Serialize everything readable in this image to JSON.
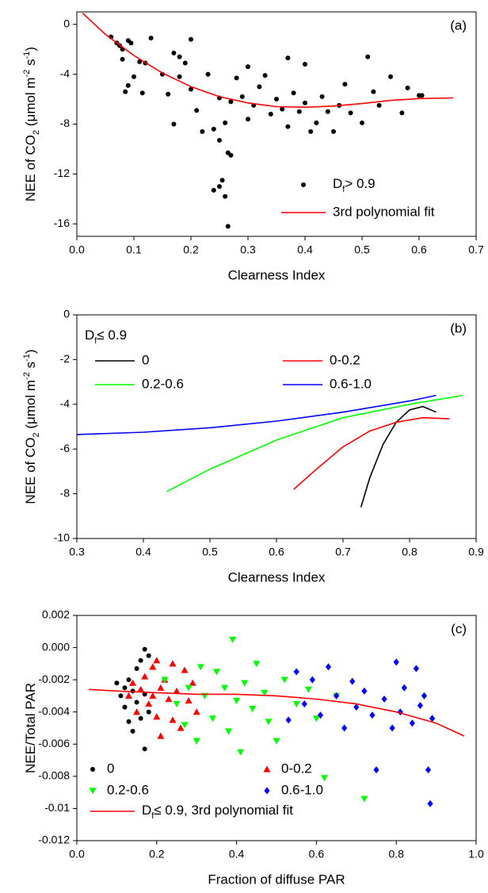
{
  "chart_data": [
    {
      "type": "scatter",
      "label": "(a)",
      "xlabel": "Clearness Index",
      "ylabel": [
        {
          "text": "NEE of CO"
        },
        {
          "text": "2",
          "style": "sub"
        },
        {
          "text": " (μmol m"
        },
        {
          "text": "-2",
          "style": "sup"
        },
        {
          "text": " s"
        },
        {
          "text": "-1",
          "style": "sup"
        },
        {
          "text": ")"
        }
      ],
      "xlim": [
        0,
        0.7
      ],
      "ylim": [
        -17,
        1
      ],
      "xticks": [
        {
          "value": 0,
          "label": "0.0"
        },
        0.1,
        0.2,
        0.3,
        0.4,
        0.5,
        0.6,
        0.7
      ],
      "yticks": [
        0,
        -4,
        -8,
        -12,
        -16
      ],
      "legend": "lower right",
      "series": [
        {
          "name": [
            {
              "text": "D"
            },
            {
              "text": "f",
              "style": "sub"
            },
            {
              "text": "> 0.9"
            }
          ],
          "type": "scatter",
          "marker": "circle",
          "color": "#000000",
          "x": [
            0.06,
            0.07,
            0.075,
            0.08,
            0.08,
            0.085,
            0.09,
            0.09,
            0.095,
            0.1,
            0.11,
            0.115,
            0.12,
            0.13,
            0.15,
            0.16,
            0.17,
            0.17,
            0.18,
            0.18,
            0.19,
            0.2,
            0.2,
            0.21,
            0.22,
            0.23,
            0.24,
            0.24,
            0.25,
            0.25,
            0.25,
            0.255,
            0.26,
            0.26,
            0.265,
            0.265,
            0.27,
            0.27,
            0.28,
            0.29,
            0.3,
            0.3,
            0.31,
            0.32,
            0.33,
            0.34,
            0.35,
            0.36,
            0.37,
            0.37,
            0.38,
            0.39,
            0.4,
            0.4,
            0.41,
            0.42,
            0.43,
            0.44,
            0.45,
            0.46,
            0.47,
            0.48,
            0.5,
            0.51,
            0.52,
            0.53,
            0.55,
            0.57,
            0.58,
            0.6,
            0.605
          ],
          "values": [
            -1.0,
            -1.5,
            -1.7,
            -2.0,
            -2.8,
            -5.4,
            -4.9,
            -1.3,
            -1.5,
            -4.2,
            -3.0,
            -5.5,
            -3.1,
            -1.1,
            -4.0,
            -5.6,
            -8.0,
            -2.3,
            -2.6,
            -4.2,
            -3.1,
            -1.2,
            -5.2,
            -6.9,
            -8.6,
            -4.0,
            -13.3,
            -8.4,
            -9.3,
            -5.9,
            -13.0,
            -12.5,
            -13.8,
            -7.9,
            -10.3,
            -16.2,
            -10.5,
            -6.2,
            -4.3,
            -5.8,
            -7.6,
            -3.4,
            -6.5,
            -5.0,
            -4.1,
            -7.2,
            -6.0,
            -6.8,
            -2.7,
            -8.2,
            -5.5,
            -7.0,
            -3.2,
            -6.3,
            -8.6,
            -7.9,
            -5.8,
            -7.0,
            -8.6,
            -6.5,
            -4.8,
            -7.1,
            -7.9,
            -2.6,
            -5.4,
            -6.5,
            -4.2,
            -7.1,
            -5.1,
            -5.7,
            -5.7
          ]
        },
        {
          "name": "3rd polynomial fit",
          "type": "line",
          "color": "#ff0000",
          "x": [
            0.01,
            0.05,
            0.1,
            0.15,
            0.2,
            0.25,
            0.3,
            0.35,
            0.4,
            0.45,
            0.5,
            0.55,
            0.6,
            0.66
          ],
          "values": [
            0.9,
            -0.8,
            -2.5,
            -3.9,
            -5.0,
            -5.8,
            -6.3,
            -6.6,
            -6.65,
            -6.55,
            -6.35,
            -6.1,
            -5.95,
            -5.9
          ]
        }
      ]
    },
    {
      "type": "line",
      "label": "(b)",
      "xlabel": "Clearness Index",
      "ylabel": [
        {
          "text": "NEE of CO"
        },
        {
          "text": "2",
          "style": "sub"
        },
        {
          "text": " (μmol m"
        },
        {
          "text": "-2",
          "style": "sup"
        },
        {
          "text": " s"
        },
        {
          "text": "-1",
          "style": "sup"
        },
        {
          "text": ")"
        }
      ],
      "xlim": [
        0.3,
        0.9
      ],
      "ylim": [
        -10,
        0
      ],
      "xticks": [
        0.3,
        0.4,
        0.5,
        0.6,
        0.7,
        0.8,
        0.9
      ],
      "yticks": [
        0,
        -2,
        -4,
        -6,
        -8,
        -10
      ],
      "legend": "upper left",
      "legend_title": [
        {
          "text": "D"
        },
        {
          "text": "f",
          "style": "sub"
        },
        {
          "text": "≤ 0.9"
        }
      ],
      "series": [
        {
          "name": "0",
          "type": "line",
          "color": "#000000",
          "x": [
            0.727,
            0.74,
            0.76,
            0.78,
            0.8,
            0.82,
            0.84
          ],
          "values": [
            -8.6,
            -7.3,
            -5.8,
            -4.8,
            -4.25,
            -4.1,
            -4.35
          ]
        },
        {
          "name": "0-0.2",
          "type": "line",
          "color": "#ff0000",
          "x": [
            0.626,
            0.66,
            0.7,
            0.74,
            0.78,
            0.82,
            0.86
          ],
          "values": [
            -7.8,
            -6.9,
            -5.9,
            -5.2,
            -4.8,
            -4.6,
            -4.65
          ]
        },
        {
          "name": "0.2-0.6",
          "type": "line",
          "color": "#00ff00",
          "x": [
            0.435,
            0.5,
            0.6,
            0.7,
            0.8,
            0.88
          ],
          "values": [
            -7.9,
            -6.9,
            -5.6,
            -4.6,
            -4.0,
            -3.6
          ]
        },
        {
          "name": "0.6-1.0",
          "type": "line",
          "color": "#0000ff",
          "x": [
            0.3,
            0.4,
            0.5,
            0.6,
            0.7,
            0.8,
            0.84
          ],
          "values": [
            -5.35,
            -5.25,
            -5.05,
            -4.75,
            -4.35,
            -3.85,
            -3.6
          ]
        }
      ]
    },
    {
      "type": "scatter",
      "label": "(c)",
      "xlabel": "Fraction of diffuse PAR",
      "ylabel": [
        {
          "text": "NEE/Total PAR"
        }
      ],
      "xlim": [
        0,
        1
      ],
      "ylim": [
        -0.012,
        0.002
      ],
      "xticks": [
        {
          "value": 0,
          "label": "0.0"
        },
        0.2,
        0.4,
        0.6,
        0.8,
        {
          "value": 1,
          "label": "1.0"
        }
      ],
      "yticks": [
        0.002,
        {
          "value": 0,
          "label": "0.000"
        },
        -0.002,
        -0.004,
        -0.006,
        -0.008,
        -0.01,
        -0.012
      ],
      "legend": "lower left",
      "series": [
        {
          "name": "0",
          "type": "scatter",
          "marker": "circle",
          "color": "#000000",
          "x": [
            0.1,
            0.11,
            0.12,
            0.12,
            0.13,
            0.13,
            0.14,
            0.14,
            0.15,
            0.15,
            0.16,
            0.16,
            0.17,
            0.17,
            0.17,
            0.18,
            0.18
          ],
          "values": [
            -0.0022,
            -0.003,
            -0.0025,
            -0.0037,
            -0.0046,
            -0.002,
            -0.0052,
            -0.0027,
            -0.0013,
            -0.0034,
            -0.0044,
            -0.0008,
            -0.0063,
            -0.0001,
            -0.0029,
            -0.004,
            -0.0005
          ]
        },
        {
          "name": "0-0.2",
          "type": "scatter",
          "marker": "triangle-up",
          "color": "#ff0000",
          "x": [
            0.13,
            0.14,
            0.15,
            0.16,
            0.17,
            0.18,
            0.19,
            0.19,
            0.2,
            0.2,
            0.21,
            0.21,
            0.22,
            0.23,
            0.24,
            0.24,
            0.25,
            0.26,
            0.27,
            0.28,
            0.29,
            0.3
          ],
          "values": [
            -0.003,
            -0.0022,
            -0.004,
            -0.0026,
            -0.0018,
            -0.0035,
            -0.0012,
            -0.003,
            -0.0008,
            -0.0043,
            -0.0025,
            -0.0055,
            -0.002,
            -0.0032,
            -0.001,
            -0.0045,
            -0.0027,
            -0.005,
            -0.0014,
            -0.0033,
            -0.0022,
            -0.004
          ]
        },
        {
          "name": "0.2-0.6",
          "type": "scatter",
          "marker": "triangle-down",
          "color": "#00ff00",
          "x": [
            0.22,
            0.25,
            0.27,
            0.28,
            0.3,
            0.31,
            0.32,
            0.34,
            0.35,
            0.37,
            0.38,
            0.39,
            0.4,
            0.41,
            0.42,
            0.44,
            0.45,
            0.47,
            0.48,
            0.5,
            0.52,
            0.55,
            0.58,
            0.6,
            0.62,
            0.65,
            0.72
          ],
          "values": [
            -0.002,
            -0.0035,
            -0.0048,
            -0.0025,
            -0.0058,
            -0.0012,
            -0.003,
            -0.0044,
            -0.0015,
            -0.0025,
            -0.0052,
            0.0005,
            -0.0033,
            -0.0065,
            -0.0022,
            -0.0038,
            -0.001,
            -0.0028,
            -0.0046,
            -0.0058,
            -0.002,
            -0.0035,
            -0.0026,
            -0.0044,
            -0.0081,
            -0.003,
            -0.0094
          ]
        },
        {
          "name": "0.6-1.0",
          "type": "scatter",
          "marker": "diamond",
          "color": "#0000ff",
          "x": [
            0.53,
            0.55,
            0.57,
            0.59,
            0.61,
            0.63,
            0.65,
            0.67,
            0.69,
            0.7,
            0.72,
            0.74,
            0.75,
            0.77,
            0.79,
            0.8,
            0.81,
            0.82,
            0.84,
            0.85,
            0.86,
            0.87,
            0.88,
            0.885,
            0.89
          ],
          "values": [
            -0.0045,
            -0.0015,
            -0.0035,
            -0.002,
            -0.0042,
            -0.0012,
            -0.003,
            -0.005,
            -0.0021,
            -0.0037,
            -0.0027,
            -0.0042,
            -0.0076,
            -0.0032,
            -0.005,
            -0.0009,
            -0.004,
            -0.0025,
            -0.0047,
            -0.0013,
            -0.0036,
            -0.003,
            -0.0076,
            -0.0097,
            -0.0044
          ]
        },
        {
          "name": [
            {
              "text": "D"
            },
            {
              "text": "f",
              "style": "sub"
            },
            {
              "text": "≤ 0.9, 3rd polynomial fit"
            }
          ],
          "type": "line",
          "color": "#ff0000",
          "x": [
            0.03,
            0.1,
            0.2,
            0.3,
            0.4,
            0.5,
            0.6,
            0.7,
            0.8,
            0.9,
            0.97
          ],
          "values": [
            -0.0026,
            -0.0027,
            -0.0028,
            -0.0029,
            -0.0029,
            -0.003,
            -0.0032,
            -0.0035,
            -0.004,
            -0.0047,
            -0.0055
          ]
        }
      ]
    }
  ]
}
